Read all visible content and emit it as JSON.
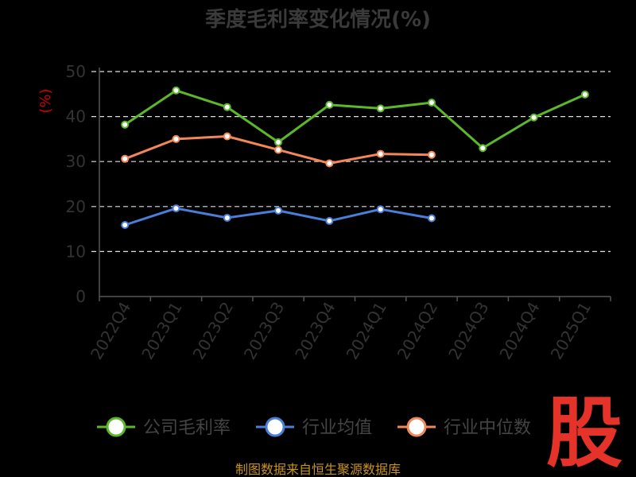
{
  "chart_data": {
    "type": "line",
    "title": "季度毛利率变化情况(%)",
    "ylabel": "(%)",
    "ylim": [
      0,
      50
    ],
    "yticks": [
      0,
      10,
      20,
      30,
      40,
      50
    ],
    "grid": true,
    "categories": [
      "2022Q4",
      "2023Q1",
      "2023Q2",
      "2023Q3",
      "2023Q4",
      "2024Q1",
      "2024Q2",
      "2024Q3",
      "2024Q4",
      "2025Q1"
    ],
    "series": [
      {
        "name": "公司毛利率",
        "color": "#5cb82a",
        "values": [
          38.2,
          45.8,
          42.1,
          34.3,
          42.6,
          41.8,
          43.1,
          33.0,
          39.8,
          44.9
        ]
      },
      {
        "name": "行业均值",
        "color": "#4a7fd9",
        "values": [
          15.9,
          19.6,
          17.5,
          19.1,
          16.8,
          19.4,
          17.4,
          null,
          null,
          null
        ]
      },
      {
        "name": "行业中位数",
        "color": "#f2875a",
        "values": [
          30.6,
          35.0,
          35.6,
          32.6,
          29.6,
          31.7,
          31.5,
          null,
          null,
          null
        ]
      }
    ],
    "legend_position": "bottom"
  },
  "footer": {
    "source": "制图数据来自恒生聚源数据库",
    "logo": "股"
  }
}
